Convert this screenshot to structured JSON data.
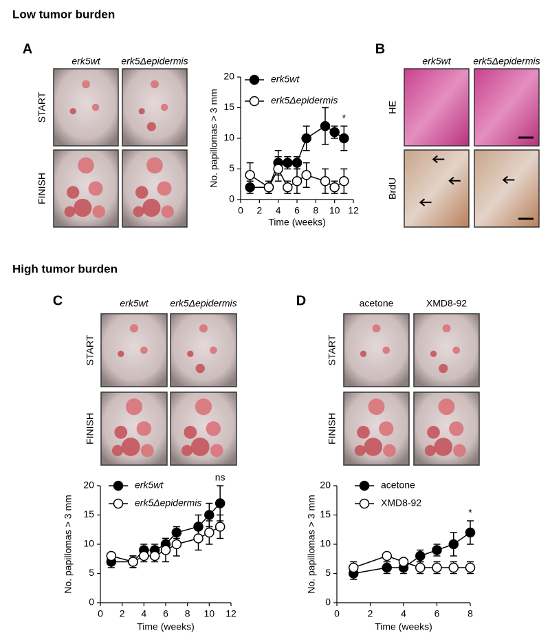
{
  "headings": [
    "Low tumor burden",
    "High tumor burden"
  ],
  "panels": [
    {
      "label": "A",
      "columns": [
        "erk5wt",
        "erk5Δepidermis"
      ],
      "rows": [
        "START",
        "FINISH"
      ]
    },
    {
      "label": "B",
      "columns": [
        "erk5wt",
        "erk5Δepidermis"
      ],
      "rows": [
        "HE",
        "BrdU"
      ]
    },
    {
      "label": "C",
      "columns": [
        "erk5wt",
        "erk5Δepidermis"
      ],
      "rows": [
        "START",
        "FINISH"
      ]
    },
    {
      "label": "D",
      "columns": [
        "acetone",
        "XMD8-92"
      ],
      "rows": [
        "START",
        "FINISH"
      ]
    }
  ],
  "chart_data": [
    {
      "type": "line",
      "xlabel": "Time (weeks)",
      "ylabel": "No. papillomas > 3 mm",
      "xlim": [
        0,
        12
      ],
      "xticks": [
        0,
        2,
        4,
        6,
        8,
        10,
        12
      ],
      "ylim": [
        0,
        20
      ],
      "yticks": [
        0,
        5,
        10,
        15,
        20
      ],
      "x": [
        1,
        3,
        4,
        5,
        6,
        7,
        9,
        10,
        11
      ],
      "series": [
        {
          "name": "erk5wt",
          "color": "#000000",
          "marker_fill": "#000000",
          "values": [
            2,
            2,
            6,
            6,
            6,
            10,
            12,
            11,
            10
          ],
          "errors": [
            1,
            1,
            2,
            1,
            1,
            2,
            3,
            1,
            2
          ]
        },
        {
          "name": "erk5Δepidermis",
          "color": "#000000",
          "marker_fill": "#ffffff",
          "values": [
            4,
            2,
            5,
            2,
            3,
            4,
            3,
            2,
            3
          ],
          "errors": [
            2,
            1,
            2,
            1,
            2,
            2,
            2,
            1,
            2
          ]
        }
      ],
      "annotations": [
        {
          "text": "*",
          "x": 11
        }
      ]
    },
    {
      "type": "line",
      "xlabel": "Time (weeks)",
      "ylabel": "No. papillomas > 3 mm",
      "xlim": [
        0,
        12
      ],
      "xticks": [
        0,
        2,
        4,
        6,
        8,
        10,
        12
      ],
      "ylim": [
        0,
        20
      ],
      "yticks": [
        0,
        5,
        10,
        15,
        20
      ],
      "x": [
        1,
        3,
        4,
        5,
        6,
        7,
        9,
        10,
        11
      ],
      "series": [
        {
          "name": "erk5wt",
          "color": "#000000",
          "marker_fill": "#000000",
          "values": [
            7,
            7,
            9,
            9,
            10,
            12,
            13,
            15,
            17
          ],
          "errors": [
            1,
            1,
            1,
            1,
            1,
            1,
            2,
            2,
            3
          ]
        },
        {
          "name": "erk5Δepidermis",
          "color": "#000000",
          "marker_fill": "#ffffff",
          "values": [
            8,
            7,
            8,
            8,
            9,
            10,
            11,
            12,
            13
          ],
          "errors": [
            0.5,
            1,
            1,
            1,
            2,
            2,
            2,
            2,
            2
          ]
        }
      ],
      "annotations": [
        {
          "text": "ns",
          "x": 11
        }
      ]
    },
    {
      "type": "line",
      "xlabel": "Time (weeks)",
      "ylabel": "No. papillomas > 3 mm",
      "xlim": [
        0,
        8
      ],
      "xticks": [
        0,
        2,
        4,
        6,
        8
      ],
      "ylim": [
        0,
        20
      ],
      "yticks": [
        0,
        5,
        10,
        15,
        20
      ],
      "x": [
        1,
        3,
        4,
        5,
        6,
        7,
        8
      ],
      "series": [
        {
          "name": "acetone",
          "color": "#000000",
          "marker_fill": "#000000",
          "values": [
            5,
            6,
            6,
            8,
            9,
            10,
            12
          ],
          "errors": [
            1,
            1,
            1,
            1,
            1,
            2,
            2
          ]
        },
        {
          "name": "XMD8-92",
          "color": "#000000",
          "marker_fill": "#ffffff",
          "values": [
            6,
            8,
            7,
            6,
            6,
            6,
            6
          ],
          "errors": [
            1,
            0.5,
            0.5,
            1,
            1,
            1,
            1
          ]
        }
      ],
      "annotations": [
        {
          "text": "*",
          "x": 8
        }
      ]
    }
  ]
}
